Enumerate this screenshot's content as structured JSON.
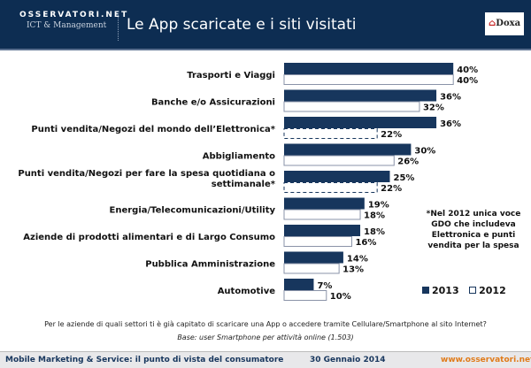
{
  "header": {
    "logo_line1": "OSSERVATORI.NET",
    "logo_line2": "ICT & Management",
    "title": "Le App scaricate e i siti visitati",
    "partner_logo": "Doxa"
  },
  "chart_data": {
    "type": "bar",
    "orientation": "horizontal",
    "categories": [
      "Trasporti e Viaggi",
      "Banche e/o Assicurazioni",
      "Punti vendita/Negozi del mondo dell’Elettronica*",
      "Abbigliamento",
      "Punti vendita/Negozi per fare la spesa quotidiana o settimanale*",
      "Energia/Telecomunicazioni/Utility",
      "Aziende di prodotti alimentari e di Largo Consumo",
      "Pubblica Amministrazione",
      "Automotive"
    ],
    "series": [
      {
        "name": "2013",
        "values": [
          40,
          36,
          36,
          30,
          25,
          19,
          18,
          14,
          7
        ],
        "color": "#17365d"
      },
      {
        "name": "2012",
        "values": [
          40,
          32,
          22,
          26,
          22,
          18,
          16,
          13,
          10
        ],
        "color": "#ffffff",
        "dashed_for": [
          2,
          4
        ]
      }
    ],
    "value_format": "%",
    "legend_position": "bottom-right",
    "grid": false,
    "note": "*Nel 2012 unica voce GDO che includeva Elettronica e punti vendita per la spesa"
  },
  "question": "Per le aziende di quali settori ti è già capitato di scaricare una App o accedere tramite Cellulare/Smartphone al sito Internet?",
  "base": "Base: user Smartphone per attività online (1.503)",
  "footer": {
    "left": "Mobile Marketing & Service: il punto di vista del consumatore",
    "date": "30 Gennaio 2014",
    "url": "www.osservatori.net"
  }
}
